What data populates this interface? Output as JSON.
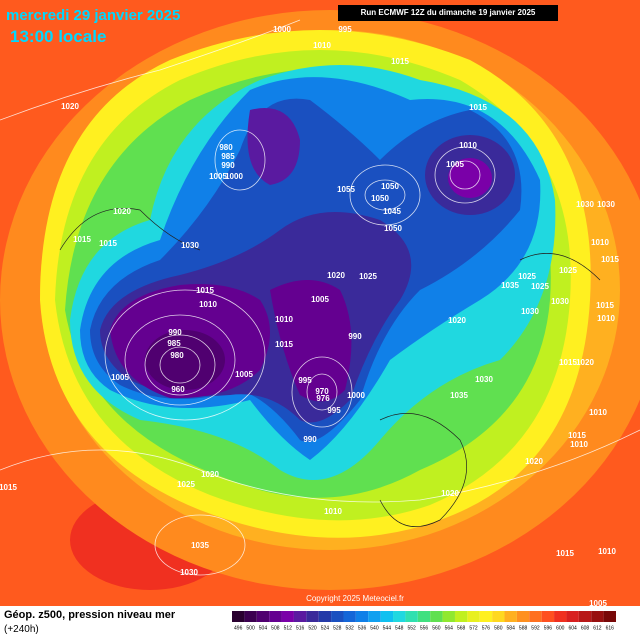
{
  "header": {
    "date": "mercredi 29 janvier 2025",
    "time": "13:00 locale",
    "run": "Run ECMWF 12Z du dimanche 19 janvier 2025"
  },
  "footer": {
    "title": "Géop. z500, pression niveau mer",
    "lead": "(+240h)",
    "copyright": "Copyright 2025 Meteociel.fr"
  },
  "scale": {
    "values": [
      496,
      500,
      504,
      508,
      512,
      516,
      520,
      524,
      528,
      532,
      536,
      540,
      544,
      548,
      552,
      556,
      560,
      564,
      568,
      572,
      576,
      580,
      584,
      588,
      592,
      596,
      600,
      604,
      608,
      612,
      616
    ],
    "colors": [
      "#2a0030",
      "#3c0050",
      "#500070",
      "#640090",
      "#7a00a8",
      "#5a1aa0",
      "#3a2a9a",
      "#243aa8",
      "#1a50c0",
      "#1466d8",
      "#1080e8",
      "#10a0f0",
      "#10c0f0",
      "#20d8e0",
      "#30e0b0",
      "#40e080",
      "#60e050",
      "#90e830",
      "#c0f020",
      "#e8f020",
      "#fff020",
      "#ffd820",
      "#ffb020",
      "#ff9020",
      "#ff7020",
      "#ff5020",
      "#f03020",
      "#d82020",
      "#b81818",
      "#981010",
      "#780808"
    ]
  },
  "pressure_labels": [
    1000,
    995,
    1010,
    1015,
    1020,
    1015,
    980,
    985,
    990,
    1005,
    1000,
    1010,
    1005,
    1020,
    1055,
    1050,
    1050,
    1045,
    1050,
    1030,
    1030,
    1015,
    1015,
    1030,
    1010,
    1015,
    1020,
    1025,
    1025,
    1025,
    1035,
    1025,
    1015,
    1010,
    1005,
    1010,
    1020,
    1030,
    1030,
    1015,
    990,
    985,
    980,
    990,
    1015,
    1010,
    1020,
    1015,
    1005,
    1005,
    995,
    970,
    976,
    960,
    1000,
    1030,
    1035,
    995,
    1010,
    990,
    1015,
    1010,
    1020,
    1020,
    1025,
    1015,
    1020,
    1010,
    1035,
    1015,
    1010,
    1030,
    1005
  ]
}
